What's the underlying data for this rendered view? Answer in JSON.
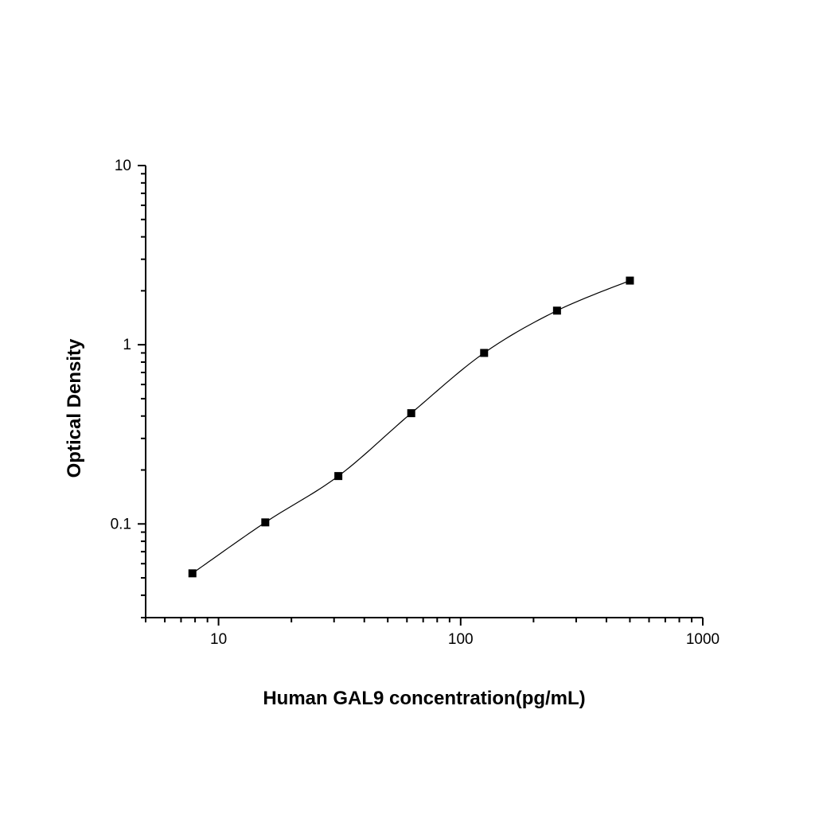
{
  "chart_data": {
    "type": "scatter",
    "title": "",
    "xlabel": "Human GAL9 concentration(pg/mL)",
    "ylabel": "Optical Density",
    "xscale": "log",
    "yscale": "log",
    "xlim": [
      5,
      1000
    ],
    "ylim": [
      0.03,
      10
    ],
    "x_tick_labels": [
      "10",
      "100",
      "1000"
    ],
    "y_tick_labels": [
      "10",
      "1",
      "0.1"
    ],
    "grid": false,
    "legend": "none",
    "series": [
      {
        "x": [
          7.8,
          15.6,
          31.25,
          62.5,
          125,
          250,
          500
        ],
        "y": [
          0.053,
          0.102,
          0.185,
          0.415,
          0.9,
          1.55,
          2.28
        ]
      }
    ],
    "fit_curve": {
      "type": "four-parameter logistic",
      "x_range": [
        7.8,
        500
      ]
    },
    "colors": {
      "axis": "#000000",
      "marker": "#000000",
      "curve": "#000000"
    }
  }
}
